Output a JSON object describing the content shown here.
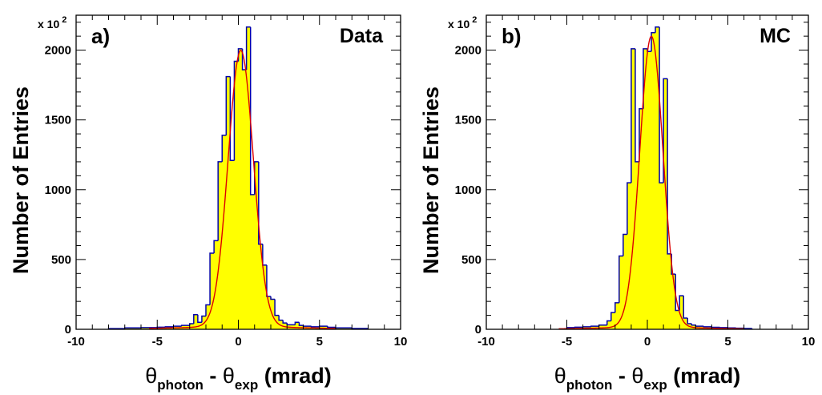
{
  "chart_data": [
    {
      "type": "histogram",
      "panel_label": "a)",
      "sample_label": "Data",
      "ylabel": "Number of Entries",
      "xlabel": {
        "theta": "θ",
        "sub1": "photon",
        "dash": " - ",
        "theta2": "θ",
        "sub2": "exp",
        "unit": " (mrad)"
      },
      "y_multiplier": {
        "base": "x 10",
        "exp": "2"
      },
      "xlim": [
        -10,
        10
      ],
      "ylim": [
        0,
        2250
      ],
      "x_ticks": [
        -10,
        -5,
        0,
        5,
        10
      ],
      "x_tick_labels": [
        "-10",
        "-5",
        "0",
        "5",
        "10"
      ],
      "y_ticks": [
        0,
        500,
        1000,
        1500,
        2000
      ],
      "y_tick_labels": [
        "0",
        "500",
        "1000",
        "1500",
        "2000"
      ],
      "fill_color": "#ffff00",
      "hist_color": "#0000aa",
      "fit_color": "#dd0000",
      "bins": [
        {
          "x0": -8.0,
          "x1": -7.0,
          "y": 5
        },
        {
          "x0": -7.0,
          "x1": -6.0,
          "y": 10
        },
        {
          "x0": -6.0,
          "x1": -5.0,
          "y": 12
        },
        {
          "x0": -5.0,
          "x1": -4.5,
          "y": 15
        },
        {
          "x0": -4.5,
          "x1": -4.0,
          "y": 18
        },
        {
          "x0": -4.0,
          "x1": -3.5,
          "y": 22
        },
        {
          "x0": -3.5,
          "x1": -3.0,
          "y": 28
        },
        {
          "x0": -3.0,
          "x1": -2.75,
          "y": 40
        },
        {
          "x0": -2.75,
          "x1": -2.5,
          "y": 105
        },
        {
          "x0": -2.5,
          "x1": -2.25,
          "y": 50
        },
        {
          "x0": -2.25,
          "x1": -2.0,
          "y": 95
        },
        {
          "x0": -2.0,
          "x1": -1.75,
          "y": 175
        },
        {
          "x0": -1.75,
          "x1": -1.5,
          "y": 545
        },
        {
          "x0": -1.5,
          "x1": -1.25,
          "y": 635
        },
        {
          "x0": -1.25,
          "x1": -1.0,
          "y": 1200
        },
        {
          "x0": -1.0,
          "x1": -0.75,
          "y": 1390
        },
        {
          "x0": -0.75,
          "x1": -0.5,
          "y": 1810
        },
        {
          "x0": -0.5,
          "x1": -0.25,
          "y": 1210
        },
        {
          "x0": -0.25,
          "x1": 0.0,
          "y": 1920
        },
        {
          "x0": 0.0,
          "x1": 0.25,
          "y": 2010
        },
        {
          "x0": 0.25,
          "x1": 0.5,
          "y": 1860
        },
        {
          "x0": 0.5,
          "x1": 0.75,
          "y": 2165
        },
        {
          "x0": 0.75,
          "x1": 1.0,
          "y": 965
        },
        {
          "x0": 1.0,
          "x1": 1.25,
          "y": 1200
        },
        {
          "x0": 1.25,
          "x1": 1.5,
          "y": 610
        },
        {
          "x0": 1.5,
          "x1": 1.75,
          "y": 460
        },
        {
          "x0": 1.75,
          "x1": 2.0,
          "y": 235
        },
        {
          "x0": 2.0,
          "x1": 2.25,
          "y": 215
        },
        {
          "x0": 2.25,
          "x1": 2.5,
          "y": 100
        },
        {
          "x0": 2.5,
          "x1": 2.75,
          "y": 65
        },
        {
          "x0": 2.75,
          "x1": 3.0,
          "y": 45
        },
        {
          "x0": 3.0,
          "x1": 3.5,
          "y": 32
        },
        {
          "x0": 3.5,
          "x1": 3.75,
          "y": 50
        },
        {
          "x0": 3.75,
          "x1": 4.0,
          "y": 28
        },
        {
          "x0": 4.0,
          "x1": 4.5,
          "y": 22
        },
        {
          "x0": 4.5,
          "x1": 5.0,
          "y": 18
        },
        {
          "x0": 5.0,
          "x1": 5.5,
          "y": 22
        },
        {
          "x0": 5.5,
          "x1": 6.0,
          "y": 14
        },
        {
          "x0": 6.0,
          "x1": 7.0,
          "y": 10
        },
        {
          "x0": 7.0,
          "x1": 8.0,
          "y": 6
        }
      ],
      "fit": {
        "type": "gaussian_plus_background",
        "amplitude": 1980,
        "mean": 0.15,
        "sigma": 0.78,
        "background": 18,
        "bg_width": 4.0
      }
    },
    {
      "type": "histogram",
      "panel_label": "b)",
      "sample_label": "MC",
      "ylabel": "Number of Entries",
      "xlabel": {
        "theta": "θ",
        "sub1": "photon",
        "dash": " - ",
        "theta2": "θ",
        "sub2": "exp",
        "unit": " (mrad)"
      },
      "y_multiplier": {
        "base": "x 10",
        "exp": "2"
      },
      "xlim": [
        -10,
        10
      ],
      "ylim": [
        0,
        2250
      ],
      "x_ticks": [
        -10,
        -5,
        0,
        5,
        10
      ],
      "x_tick_labels": [
        "-10",
        "-5",
        "0",
        "5",
        "10"
      ],
      "y_ticks": [
        0,
        500,
        1000,
        1500,
        2000
      ],
      "y_tick_labels": [
        "0",
        "500",
        "1000",
        "1500",
        "2000"
      ],
      "fill_color": "#ffff00",
      "hist_color": "#0000aa",
      "fit_color": "#dd0000",
      "bins": [
        {
          "x0": -5.0,
          "x1": -4.5,
          "y": 12
        },
        {
          "x0": -4.5,
          "x1": -4.0,
          "y": 15
        },
        {
          "x0": -4.0,
          "x1": -3.5,
          "y": 18
        },
        {
          "x0": -3.5,
          "x1": -3.0,
          "y": 22
        },
        {
          "x0": -3.0,
          "x1": -2.5,
          "y": 30
        },
        {
          "x0": -2.5,
          "x1": -2.25,
          "y": 60
        },
        {
          "x0": -2.25,
          "x1": -2.0,
          "y": 120
        },
        {
          "x0": -2.0,
          "x1": -1.75,
          "y": 190
        },
        {
          "x0": -1.75,
          "x1": -1.5,
          "y": 525
        },
        {
          "x0": -1.5,
          "x1": -1.25,
          "y": 680
        },
        {
          "x0": -1.25,
          "x1": -1.0,
          "y": 1050
        },
        {
          "x0": -1.0,
          "x1": -0.75,
          "y": 2010
        },
        {
          "x0": -0.75,
          "x1": -0.5,
          "y": 1200
        },
        {
          "x0": -0.5,
          "x1": -0.25,
          "y": 1580
        },
        {
          "x0": -0.25,
          "x1": 0.0,
          "y": 2010
        },
        {
          "x0": 0.0,
          "x1": 0.25,
          "y": 1990
        },
        {
          "x0": 0.25,
          "x1": 0.5,
          "y": 2125
        },
        {
          "x0": 0.5,
          "x1": 0.75,
          "y": 2165
        },
        {
          "x0": 0.75,
          "x1": 1.0,
          "y": 1050
        },
        {
          "x0": 1.0,
          "x1": 1.25,
          "y": 1795
        },
        {
          "x0": 1.25,
          "x1": 1.5,
          "y": 540
        },
        {
          "x0": 1.5,
          "x1": 1.75,
          "y": 395
        },
        {
          "x0": 1.75,
          "x1": 2.0,
          "y": 135
        },
        {
          "x0": 2.0,
          "x1": 2.25,
          "y": 240
        },
        {
          "x0": 2.25,
          "x1": 2.5,
          "y": 80
        },
        {
          "x0": 2.5,
          "x1": 2.75,
          "y": 40
        },
        {
          "x0": 2.75,
          "x1": 3.0,
          "y": 30
        },
        {
          "x0": 3.0,
          "x1": 3.5,
          "y": 22
        },
        {
          "x0": 3.5,
          "x1": 4.0,
          "y": 18
        },
        {
          "x0": 4.0,
          "x1": 4.5,
          "y": 14
        },
        {
          "x0": 4.5,
          "x1": 5.0,
          "y": 12
        },
        {
          "x0": 5.0,
          "x1": 5.5,
          "y": 10
        },
        {
          "x0": 5.5,
          "x1": 6.0,
          "y": 8
        },
        {
          "x0": 6.0,
          "x1": 6.5,
          "y": 6
        }
      ],
      "fit": {
        "type": "gaussian_plus_background",
        "amplitude": 2085,
        "mean": 0.25,
        "sigma": 0.72,
        "background": 14,
        "bg_width": 3.5
      }
    }
  ]
}
